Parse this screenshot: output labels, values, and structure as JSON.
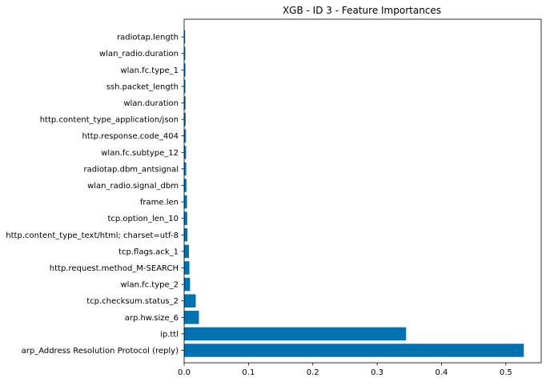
{
  "chart_data": {
    "type": "bar",
    "orientation": "horizontal",
    "title": "XGB - ID 3 - Feature Importances",
    "xlabel": "",
    "ylabel": "",
    "xlim": [
      0,
      0.555
    ],
    "xticks": [
      0,
      0.1,
      0.2,
      0.3,
      0.4,
      0.5
    ],
    "xtick_labels": [
      "0.0",
      "0.1",
      "0.2",
      "0.3",
      "0.4",
      "0.5"
    ],
    "grid": false,
    "bar_color": "#0072b2",
    "categories": [
      "radiotap.length",
      "wlan_radio.duration",
      "wlan.fc.type_1",
      "ssh.packet_length",
      "wlan.duration",
      "http.content_type_application/json",
      "http.response.code_404",
      "wlan.fc.subtype_12",
      "radiotap.dbm_antsignal",
      "wlan_radio.signal_dbm",
      "frame.len",
      "tcp.option_len_10",
      "http.content_type_text/html; charset=utf-8",
      "tcp.flags.ack_1",
      "http.request.method_M-SEARCH",
      "wlan.fc.type_2",
      "tcp.checksum.status_2",
      "arp.hw.size_6",
      "ip.ttl",
      "arp_Address Resolution Protocol (reply)"
    ],
    "values": [
      0.0015,
      0.0018,
      0.002,
      0.002,
      0.0022,
      0.0024,
      0.0028,
      0.003,
      0.0032,
      0.0036,
      0.0045,
      0.0048,
      0.0052,
      0.0075,
      0.0082,
      0.0092,
      0.018,
      0.023,
      0.345,
      0.528
    ]
  }
}
